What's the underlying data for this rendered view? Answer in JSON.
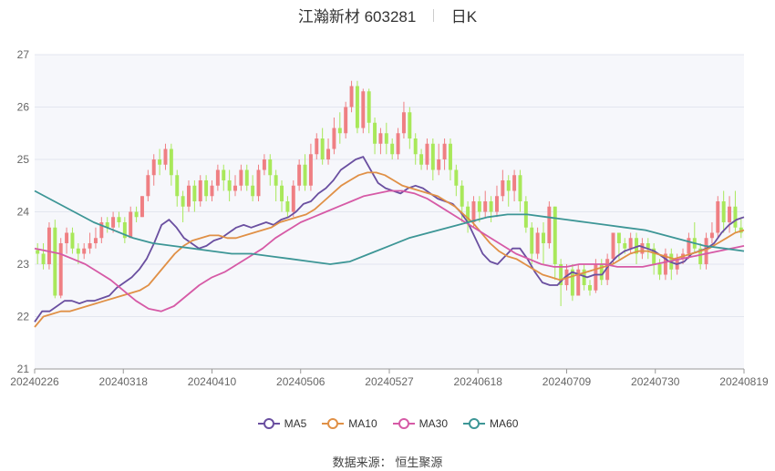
{
  "header": {
    "title": "江瀚新材 603281",
    "period": "日K"
  },
  "footer": {
    "source_label": "数据来源：",
    "source_name": "恒生聚源"
  },
  "chart_data": {
    "type": "candlestick",
    "y_ticks": [
      "21",
      "22",
      "23",
      "24",
      "25",
      "26",
      "27"
    ],
    "ylim": [
      21,
      27
    ],
    "x_labels": [
      "20240226",
      "20240318",
      "20240410",
      "20240506",
      "20240527",
      "20240618",
      "20240709",
      "20240730",
      "20240819"
    ],
    "colors": {
      "up": "#ef7f83",
      "down": "#a8e85a"
    },
    "legend": [
      {
        "name": "MA5",
        "color": "#6a4fa0"
      },
      {
        "name": "MA10",
        "color": "#e09046"
      },
      {
        "name": "MA30",
        "color": "#d65aa6"
      },
      {
        "name": "MA60",
        "color": "#3d9696"
      }
    ],
    "candles": [
      [
        23.27,
        23.2,
        23.0,
        23.4
      ],
      [
        23.2,
        23.0,
        22.9,
        23.4
      ],
      [
        23.0,
        23.7,
        22.9,
        23.8
      ],
      [
        23.7,
        22.4,
        22.35,
        23.85
      ],
      [
        22.4,
        23.4,
        22.35,
        23.5
      ],
      [
        23.4,
        23.6,
        23.2,
        23.7
      ],
      [
        23.6,
        23.3,
        23.2,
        23.7
      ],
      [
        23.3,
        23.2,
        23.0,
        23.4
      ],
      [
        23.2,
        23.3,
        23.1,
        23.4
      ],
      [
        23.3,
        23.4,
        23.2,
        23.6
      ],
      [
        23.4,
        23.5,
        23.3,
        23.7
      ],
      [
        23.5,
        23.8,
        23.4,
        23.9
      ],
      [
        23.8,
        23.7,
        23.6,
        23.9
      ],
      [
        23.7,
        23.9,
        23.6,
        24.0
      ],
      [
        23.9,
        23.8,
        23.7,
        24.0
      ],
      [
        23.8,
        23.5,
        23.4,
        23.9
      ],
      [
        23.5,
        24.0,
        23.5,
        24.1
      ],
      [
        24.0,
        23.9,
        23.8,
        24.1
      ],
      [
        23.9,
        24.3,
        23.9,
        24.3
      ],
      [
        24.3,
        24.7,
        24.2,
        24.8
      ],
      [
        24.7,
        25.0,
        24.5,
        25.1
      ],
      [
        25.0,
        24.9,
        24.7,
        25.2
      ],
      [
        24.9,
        25.2,
        24.8,
        25.3
      ],
      [
        25.2,
        24.7,
        24.5,
        25.3
      ],
      [
        24.7,
        24.3,
        24.1,
        24.8
      ],
      [
        24.3,
        24.1,
        23.8,
        24.4
      ],
      [
        24.1,
        24.5,
        24.0,
        24.6
      ],
      [
        24.5,
        24.2,
        24.0,
        24.6
      ],
      [
        24.2,
        24.6,
        24.1,
        24.7
      ],
      [
        24.6,
        24.3,
        24.2,
        24.7
      ],
      [
        24.3,
        24.5,
        24.2,
        24.6
      ],
      [
        24.5,
        24.8,
        24.4,
        24.9
      ],
      [
        24.8,
        24.6,
        24.4,
        24.9
      ],
      [
        24.6,
        24.4,
        24.2,
        24.8
      ],
      [
        24.4,
        24.5,
        24.3,
        24.7
      ],
      [
        24.5,
        24.8,
        24.4,
        24.9
      ],
      [
        24.8,
        24.5,
        24.4,
        24.9
      ],
      [
        24.5,
        24.3,
        24.2,
        24.7
      ],
      [
        24.3,
        24.8,
        24.2,
        24.9
      ],
      [
        24.8,
        25.0,
        24.7,
        25.1
      ],
      [
        25.0,
        24.7,
        24.5,
        25.1
      ],
      [
        24.7,
        24.5,
        24.2,
        24.8
      ],
      [
        24.5,
        24.2,
        24.0,
        24.6
      ],
      [
        24.2,
        24.0,
        23.9,
        24.3
      ],
      [
        24.0,
        24.5,
        23.9,
        24.6
      ],
      [
        24.5,
        24.9,
        24.4,
        25.0
      ],
      [
        24.9,
        24.5,
        24.4,
        25.1
      ],
      [
        24.5,
        25.1,
        24.4,
        25.3
      ],
      [
        25.1,
        25.4,
        25.0,
        25.5
      ],
      [
        25.4,
        25.0,
        24.9,
        25.6
      ],
      [
        25.0,
        25.2,
        24.9,
        25.4
      ],
      [
        25.2,
        25.6,
        25.1,
        25.8
      ],
      [
        25.6,
        25.5,
        25.3,
        25.9
      ],
      [
        25.5,
        26.0,
        25.4,
        26.1
      ],
      [
        26.0,
        26.4,
        25.9,
        26.5
      ],
      [
        26.4,
        25.6,
        25.5,
        26.5
      ],
      [
        25.6,
        26.3,
        25.5,
        26.35
      ],
      [
        26.3,
        25.7,
        25.5,
        26.35
      ],
      [
        25.7,
        25.3,
        25.1,
        25.8
      ],
      [
        25.3,
        25.5,
        25.1,
        25.6
      ],
      [
        25.5,
        25.3,
        25.1,
        25.7
      ],
      [
        25.3,
        25.1,
        25.0,
        25.4
      ],
      [
        25.1,
        25.5,
        25.0,
        25.6
      ],
      [
        25.5,
        25.9,
        25.4,
        26.1
      ],
      [
        25.9,
        25.4,
        25.2,
        26.0
      ],
      [
        25.4,
        25.1,
        24.9,
        25.5
      ],
      [
        25.1,
        24.9,
        24.8,
        25.2
      ],
      [
        24.9,
        25.3,
        24.8,
        25.4
      ],
      [
        25.3,
        24.8,
        24.6,
        25.4
      ],
      [
        24.8,
        25.0,
        24.7,
        25.3
      ],
      [
        25.0,
        25.3,
        24.8,
        25.4
      ],
      [
        25.3,
        24.8,
        24.6,
        25.4
      ],
      [
        24.8,
        24.5,
        24.3,
        24.9
      ],
      [
        24.5,
        24.1,
        23.8,
        24.6
      ],
      [
        24.1,
        23.8,
        23.6,
        24.2
      ],
      [
        23.8,
        24.2,
        23.7,
        24.3
      ],
      [
        24.2,
        24.0,
        23.8,
        24.3
      ],
      [
        24.0,
        24.2,
        23.9,
        24.4
      ],
      [
        24.2,
        24.0,
        23.8,
        24.3
      ],
      [
        24.0,
        24.3,
        23.9,
        24.5
      ],
      [
        24.3,
        24.6,
        24.2,
        24.8
      ],
      [
        24.6,
        24.4,
        24.1,
        24.7
      ],
      [
        24.4,
        24.7,
        24.2,
        24.8
      ],
      [
        24.7,
        24.2,
        24.0,
        24.8
      ],
      [
        24.2,
        23.7,
        23.6,
        24.3
      ],
      [
        23.7,
        23.2,
        23.0,
        23.8
      ],
      [
        23.2,
        23.6,
        23.1,
        23.7
      ],
      [
        23.6,
        23.4,
        23.0,
        23.8
      ],
      [
        23.4,
        24.1,
        23.3,
        24.2
      ],
      [
        24.1,
        23.0,
        22.7,
        24.1
      ],
      [
        23.0,
        22.6,
        22.2,
        23.1
      ],
      [
        22.6,
        22.9,
        22.5,
        23.0
      ],
      [
        22.9,
        22.4,
        22.3,
        23.0
      ],
      [
        22.4,
        22.9,
        22.4,
        23.0
      ],
      [
        22.9,
        22.6,
        22.5,
        23.0
      ],
      [
        22.6,
        22.5,
        22.4,
        22.7
      ],
      [
        22.5,
        23.0,
        22.45,
        23.1
      ],
      [
        23.0,
        22.7,
        22.6,
        23.1
      ],
      [
        22.7,
        23.1,
        22.6,
        23.2
      ],
      [
        23.1,
        23.6,
        23.0,
        23.6
      ],
      [
        23.6,
        23.4,
        23.1,
        23.6
      ],
      [
        23.4,
        23.3,
        23.2,
        23.5
      ],
      [
        23.3,
        23.5,
        23.2,
        23.6
      ],
      [
        23.5,
        23.2,
        23.0,
        23.6
      ],
      [
        23.2,
        23.4,
        23.1,
        23.5
      ],
      [
        23.4,
        23.3,
        23.1,
        23.5
      ],
      [
        23.3,
        23.0,
        22.8,
        23.4
      ],
      [
        23.0,
        22.8,
        22.7,
        23.1
      ],
      [
        22.8,
        23.2,
        22.7,
        23.3
      ],
      [
        23.2,
        22.9,
        22.7,
        23.3
      ],
      [
        22.9,
        23.1,
        22.8,
        23.2
      ],
      [
        23.1,
        23.2,
        23.0,
        23.3
      ],
      [
        23.2,
        23.5,
        23.1,
        23.6
      ],
      [
        23.5,
        23.3,
        23.2,
        23.8
      ],
      [
        23.3,
        23.0,
        22.9,
        23.4
      ],
      [
        23.0,
        23.5,
        22.9,
        23.6
      ],
      [
        23.5,
        23.6,
        23.4,
        23.8
      ],
      [
        23.6,
        24.2,
        23.5,
        24.3
      ],
      [
        24.2,
        23.8,
        23.6,
        24.4
      ],
      [
        23.8,
        24.1,
        23.6,
        24.3
      ],
      [
        24.1,
        23.7,
        23.6,
        24.4
      ],
      [
        23.7,
        23.6,
        23.5,
        23.9
      ]
    ],
    "series": [
      {
        "name": "MA5",
        "color": "#6a4fa0",
        "values": [
          21.9,
          22.1,
          22.1,
          22.2,
          22.3,
          22.3,
          22.25,
          22.3,
          22.3,
          22.35,
          22.4,
          22.55,
          22.65,
          22.75,
          22.9,
          23.1,
          23.4,
          23.75,
          23.85,
          23.7,
          23.5,
          23.4,
          23.3,
          23.35,
          23.45,
          23.5,
          23.6,
          23.7,
          23.75,
          23.7,
          23.75,
          23.8,
          23.75,
          23.85,
          23.9,
          24.0,
          24.15,
          24.2,
          24.35,
          24.45,
          24.6,
          24.8,
          24.9,
          25.0,
          25.05,
          24.8,
          24.55,
          24.45,
          24.4,
          24.35,
          24.45,
          24.5,
          24.45,
          24.35,
          24.25,
          24.2,
          24.15,
          24.0,
          23.8,
          23.5,
          23.2,
          23.05,
          23.0,
          23.15,
          23.3,
          23.3,
          23.1,
          22.85,
          22.65,
          22.6,
          22.6,
          22.75,
          22.85,
          22.8,
          22.75,
          22.8,
          22.8,
          23.0,
          23.15,
          23.25,
          23.3,
          23.35,
          23.3,
          23.25,
          23.15,
          23.05,
          23.0,
          23.05,
          23.2,
          23.25,
          23.3,
          23.4,
          23.6,
          23.75,
          23.85,
          23.9
        ]
      },
      {
        "name": "MA10",
        "color": "#e09046",
        "values": [
          21.8,
          22.0,
          22.05,
          22.1,
          22.1,
          22.15,
          22.2,
          22.25,
          22.3,
          22.35,
          22.4,
          22.45,
          22.5,
          22.6,
          22.8,
          23.0,
          23.2,
          23.35,
          23.45,
          23.5,
          23.55,
          23.55,
          23.5,
          23.5,
          23.55,
          23.6,
          23.65,
          23.7,
          23.8,
          23.85,
          23.9,
          23.95,
          24.05,
          24.2,
          24.35,
          24.5,
          24.6,
          24.7,
          24.75,
          24.75,
          24.7,
          24.6,
          24.5,
          24.45,
          24.4,
          24.35,
          24.3,
          24.2,
          24.1,
          23.95,
          23.8,
          23.6,
          23.4,
          23.25,
          23.15,
          23.1,
          23.0,
          22.9,
          22.8,
          22.75,
          22.7,
          22.75,
          22.8,
          22.85,
          22.9,
          22.95,
          23.0,
          23.1,
          23.2,
          23.25,
          23.25,
          23.2,
          23.15,
          23.1,
          23.15,
          23.2,
          23.25,
          23.3,
          23.4,
          23.5,
          23.6,
          23.65
        ]
      },
      {
        "name": "MA30",
        "color": "#d65aa6",
        "values": [
          23.3,
          23.25,
          23.2,
          23.1,
          23.0,
          22.85,
          22.7,
          22.5,
          22.3,
          22.15,
          22.1,
          22.2,
          22.4,
          22.6,
          22.75,
          22.85,
          23.0,
          23.15,
          23.3,
          23.5,
          23.65,
          23.8,
          23.9,
          24.0,
          24.1,
          24.2,
          24.3,
          24.35,
          24.4,
          24.4,
          24.35,
          24.25,
          24.1,
          23.95,
          23.8,
          23.65,
          23.5,
          23.35,
          23.2,
          23.1,
          23.0,
          22.95,
          22.95,
          23.0,
          23.0,
          23.0,
          22.95,
          22.95,
          22.95,
          23.0,
          23.05,
          23.1,
          23.15,
          23.2,
          23.25,
          23.3,
          23.35
        ]
      },
      {
        "name": "MA60",
        "color": "#3d9696",
        "values": [
          24.4,
          24.2,
          24.0,
          23.8,
          23.65,
          23.5,
          23.4,
          23.35,
          23.3,
          23.25,
          23.2,
          23.2,
          23.15,
          23.1,
          23.05,
          23.0,
          23.05,
          23.2,
          23.35,
          23.5,
          23.6,
          23.7,
          23.8,
          23.9,
          23.95,
          23.95,
          23.9,
          23.85,
          23.8,
          23.75,
          23.7,
          23.65,
          23.55,
          23.45,
          23.35,
          23.3,
          23.25
        ]
      }
    ]
  }
}
